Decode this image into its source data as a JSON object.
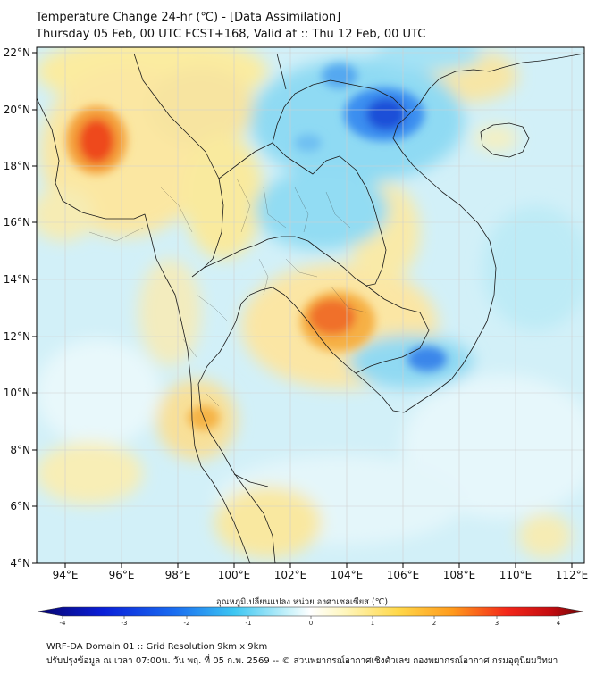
{
  "title": {
    "line1": "Temperature Change 24-hr (℃) - [Data Assimilation]",
    "line2": "Thursday 05 Feb, 00 UTC FCST+168, Valid at :: Thu 12 Feb, 00 UTC"
  },
  "axes": {
    "lat_labels": [
      "22°N",
      "20°N",
      "18°N",
      "16°N",
      "14°N",
      "12°N",
      "10°N",
      "8°N",
      "6°N",
      "4°N"
    ],
    "lon_labels": [
      "94°E",
      "96°E",
      "98°E",
      "100°E",
      "102°E",
      "104°E",
      "106°E",
      "108°E",
      "110°E",
      "112°E"
    ]
  },
  "colorbar": {
    "title": "อุณหภูมิเปลี่ยนแปลง หน่วย องศาเซลเซียส (℃)",
    "tick_labels": [
      "-4",
      "-3",
      "-2",
      "-1",
      "0",
      "1",
      "2",
      "3",
      "4"
    ]
  },
  "footer": {
    "line1": "WRF-DA Domain 01 :: Grid Resolution 9km x 9km",
    "line2": "ปรับปรุงข้อมูล ณ เวลา 07:00น. วัน พฤ. ที่ 05 ก.พ. 2569 -- © ส่วนพยากรณ์อากาศเชิงตัวเลข กองพยากรณ์อากาศ กรมอุตุนิยมวิทยา"
  },
  "colors": {
    "background_field": "#d2f0f8",
    "gridline": "#cfcfcf",
    "coastline": "#1a1a1a"
  }
}
